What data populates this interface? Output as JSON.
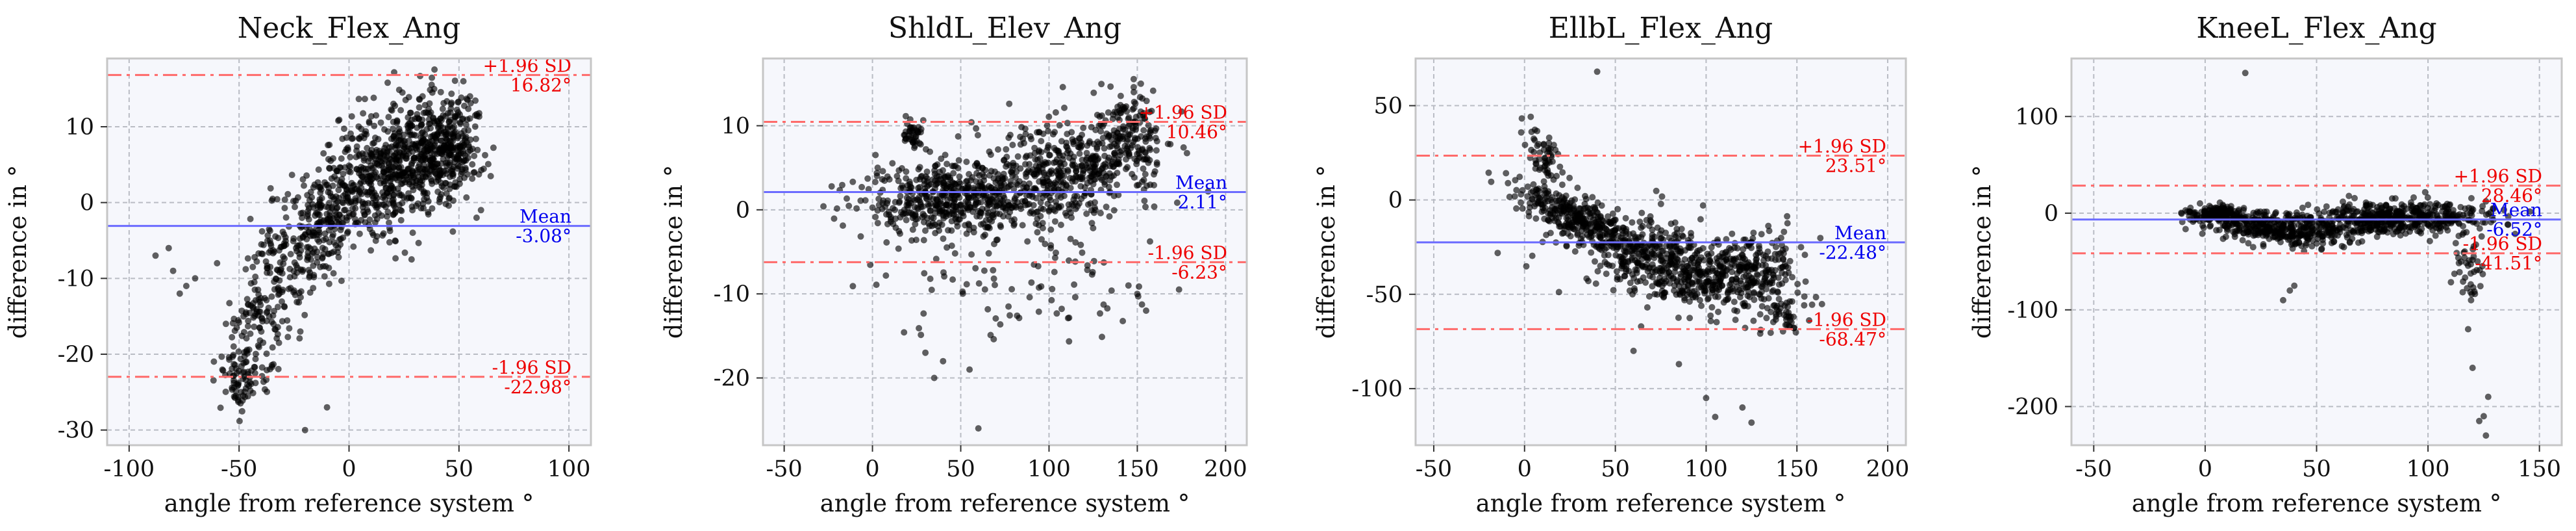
{
  "chart_data": [
    {
      "type": "scatter",
      "title": "Neck_Flex_Ang",
      "xlabel": "angle from reference system °",
      "ylabel": "difference in °",
      "xlim": [
        -110,
        110
      ],
      "ylim": [
        -32,
        19
      ],
      "xticks": [
        -100,
        -50,
        0,
        50,
        100
      ],
      "yticks": [
        -30,
        -20,
        -10,
        0,
        10
      ],
      "grid": true,
      "mean": -3.08,
      "upper_loa": 16.82,
      "lower_loa": -22.98,
      "mean_label": "Mean",
      "mean_value_label": "-3.08°",
      "upper_label": "+1.96 SD",
      "upper_value_label": "16.82°",
      "lower_label": "-1.96 SD",
      "lower_value_label": "-22.98°",
      "clusters": [
        {
          "x": -40,
          "y": -12,
          "sx": 9,
          "sy": 7,
          "n": 160,
          "corr": 0.75
        },
        {
          "x": -10,
          "y": -2,
          "sx": 14,
          "sy": 7,
          "n": 380,
          "corr": 0.8
        },
        {
          "x": 25,
          "y": 5,
          "sx": 13,
          "sy": 4.5,
          "n": 520,
          "corr": 0.5
        },
        {
          "x": 45,
          "y": 7,
          "sx": 8,
          "sy": 3.5,
          "n": 260,
          "corr": 0.2
        },
        {
          "x": -48,
          "y": -23.5,
          "sx": 5,
          "sy": 1.5,
          "n": 60,
          "corr": 0
        }
      ],
      "points": [
        [
          -88,
          -7
        ],
        [
          -82,
          -6
        ],
        [
          -80,
          -9
        ],
        [
          -77,
          -12
        ],
        [
          -74,
          -11
        ],
        [
          -70,
          -10
        ],
        [
          -60,
          -8
        ],
        [
          -56,
          -16
        ],
        [
          -20,
          -30
        ],
        [
          -10,
          -27
        ],
        [
          57,
          4
        ],
        [
          58,
          -2
        ],
        [
          60,
          -1
        ],
        [
          52,
          16
        ],
        [
          55,
          14
        ]
      ]
    },
    {
      "type": "scatter",
      "title": "ShldL_Elev_Ang",
      "xlabel": "angle from reference system °",
      "ylabel": "difference in °",
      "xlim": [
        -62,
        212
      ],
      "ylim": [
        -28,
        18
      ],
      "xticks": [
        -50,
        0,
        50,
        100,
        150,
        200
      ],
      "yticks": [
        -20,
        -10,
        0,
        10
      ],
      "grid": true,
      "mean": 2.11,
      "upper_loa": 10.46,
      "lower_loa": -6.23,
      "mean_label": "Mean",
      "mean_value_label": "2.11°",
      "upper_label": "+1.96 SD",
      "upper_value_label": "10.46°",
      "lower_label": "-1.96 SD",
      "lower_value_label": "-6.23°",
      "clusters": [
        {
          "x": 45,
          "y": 1.5,
          "sx": 25,
          "sy": 2.2,
          "n": 500,
          "corr": 0
        },
        {
          "x": 110,
          "y": 4.5,
          "sx": 25,
          "sy": 3.2,
          "n": 480,
          "corr": 0.2
        },
        {
          "x": 145,
          "y": 9,
          "sx": 8,
          "sy": 3,
          "n": 120,
          "corr": 0
        },
        {
          "x": 22,
          "y": 9,
          "sx": 3,
          "sy": 1,
          "n": 40,
          "corr": 0
        },
        {
          "x": 80,
          "y": -9,
          "sx": 40,
          "sy": 4,
          "n": 90,
          "corr": 0
        }
      ],
      "points": [
        [
          60,
          -26
        ],
        [
          30,
          -17
        ],
        [
          40,
          -18
        ],
        [
          35,
          -20
        ],
        [
          55,
          -19
        ],
        [
          150,
          -10
        ],
        [
          155,
          -12
        ],
        [
          145,
          -9
        ],
        [
          152,
          15
        ],
        [
          148,
          14
        ]
      ]
    },
    {
      "type": "scatter",
      "title": "EllbL_Flex_Ang",
      "xlabel": "angle from reference system °",
      "ylabel": "difference in °",
      "xlim": [
        -60,
        210
      ],
      "ylim": [
        -130,
        75
      ],
      "xticks": [
        -50,
        0,
        50,
        100,
        150,
        200
      ],
      "yticks": [
        -100,
        -50,
        0,
        50
      ],
      "grid": true,
      "mean": -22.48,
      "upper_loa": 23.51,
      "lower_loa": -68.47,
      "mean_label": "Mean",
      "mean_value_label": "-22.48°",
      "upper_label": "+1.96 SD",
      "upper_value_label": "23.51°",
      "lower_label": "-1.96 SD",
      "lower_value_label": "-68.47°",
      "clusters": [
        {
          "x": 30,
          "y": -10,
          "sx": 18,
          "sy": 9,
          "n": 300,
          "corr": -0.8
        },
        {
          "x": 80,
          "y": -35,
          "sx": 28,
          "sy": 14,
          "n": 560,
          "corr": -0.6
        },
        {
          "x": 125,
          "y": -35,
          "sx": 15,
          "sy": 10,
          "n": 200,
          "corr": 0.2
        },
        {
          "x": 10,
          "y": 25,
          "sx": 5,
          "sy": 8,
          "n": 60,
          "corr": -0.5
        },
        {
          "x": 140,
          "y": -62,
          "sx": 6,
          "sy": 4,
          "n": 40,
          "corr": 0
        }
      ],
      "points": [
        [
          40,
          68
        ],
        [
          100,
          -105
        ],
        [
          105,
          -115
        ],
        [
          120,
          -110
        ],
        [
          125,
          -118
        ],
        [
          60,
          -80
        ],
        [
          85,
          -87
        ]
      ]
    },
    {
      "type": "scatter",
      "title": "KneeL_Flex_Ang",
      "xlabel": "angle from reference system °",
      "ylabel": "difference in °",
      "xlim": [
        -60,
        160
      ],
      "ylim": [
        -240,
        160
      ],
      "xticks": [
        -50,
        0,
        50,
        100,
        150
      ],
      "yticks": [
        -200,
        -100,
        0,
        100
      ],
      "grid": true,
      "mean": -6.52,
      "upper_loa": 28.46,
      "lower_loa": -41.51,
      "mean_label": "Mean",
      "mean_value_label": "-6.52°",
      "upper_label": "+1.96 SD",
      "upper_value_label": "28.46°",
      "lower_label": "-1.96 SD",
      "lower_value_label": "-41.51°",
      "clusters": [
        {
          "x": 30,
          "y": -15,
          "sx": 15,
          "sy": 9,
          "n": 380,
          "corr": -0.4
        },
        {
          "x": 85,
          "y": -5,
          "sx": 22,
          "sy": 9,
          "n": 520,
          "corr": 0.2
        },
        {
          "x": 5,
          "y": 0,
          "sx": 6,
          "sy": 4,
          "n": 140,
          "corr": 0
        },
        {
          "x": 118,
          "y": -55,
          "sx": 3,
          "sy": 18,
          "n": 40,
          "corr": 0
        }
      ],
      "points": [
        [
          18,
          145
        ],
        [
          125,
          -210
        ],
        [
          127,
          -190
        ],
        [
          123,
          -215
        ],
        [
          120,
          -160
        ],
        [
          118,
          -120
        ],
        [
          40,
          -75
        ],
        [
          38,
          -80
        ],
        [
          35,
          -90
        ],
        [
          126,
          -230
        ]
      ]
    }
  ]
}
